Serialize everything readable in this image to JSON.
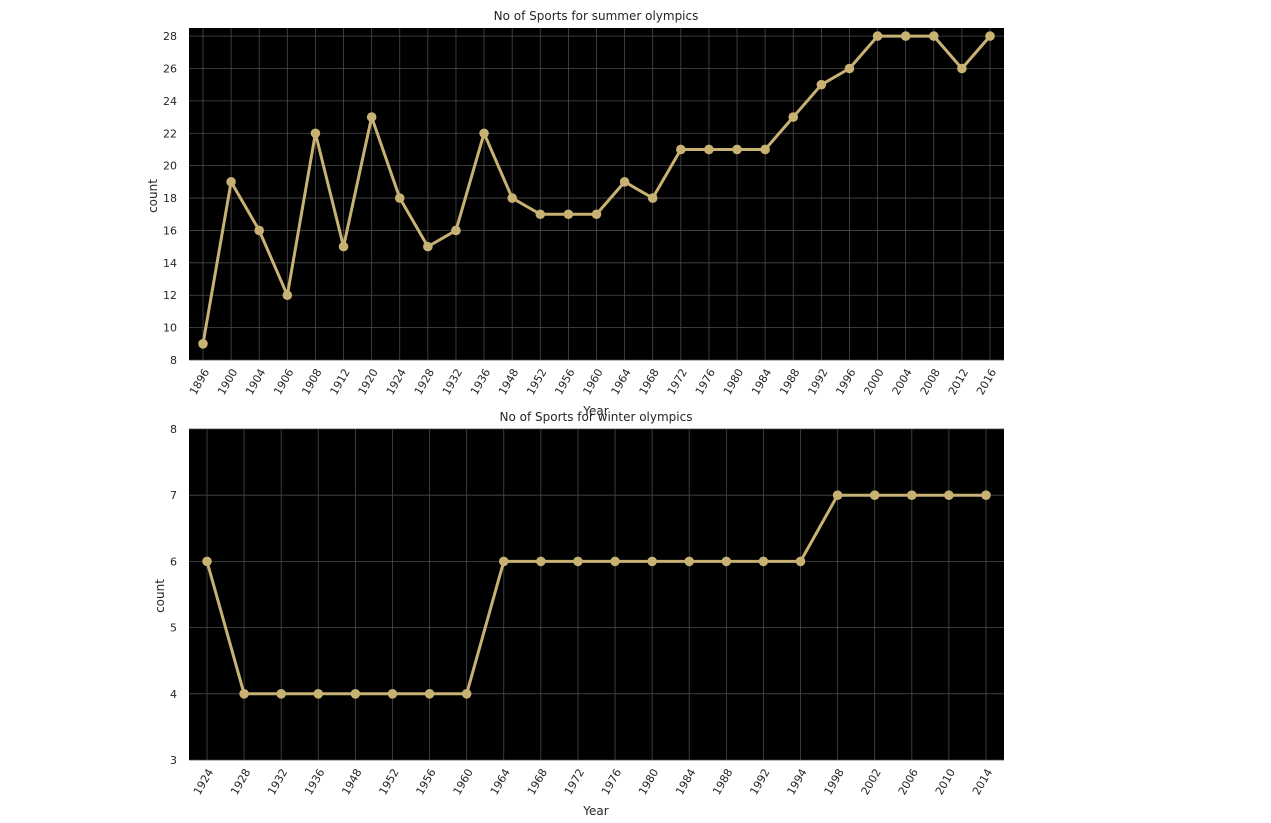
{
  "chart_data": [
    {
      "type": "line",
      "title": "No of Sports for summer olympics",
      "xlabel": "Year",
      "ylabel": "count",
      "ylim": [
        8,
        28.5
      ],
      "yticks": [
        8,
        10,
        12,
        14,
        16,
        18,
        20,
        22,
        24,
        26,
        28
      ],
      "grid": true,
      "colors": {
        "line": "#c8b273",
        "background": "#000000",
        "grid": "#4a4a4a"
      },
      "x": [
        "1896",
        "1900",
        "1904",
        "1906",
        "1908",
        "1912",
        "1920",
        "1924",
        "1928",
        "1932",
        "1936",
        "1948",
        "1952",
        "1956",
        "1960",
        "1964",
        "1968",
        "1972",
        "1976",
        "1980",
        "1984",
        "1988",
        "1992",
        "1996",
        "2000",
        "2004",
        "2008",
        "2012",
        "2016"
      ],
      "values": [
        9,
        19,
        16,
        12,
        22,
        15,
        23,
        18,
        15,
        16,
        22,
        18,
        17,
        17,
        17,
        19,
        18,
        21,
        21,
        21,
        21,
        23,
        25,
        26,
        28,
        28,
        28,
        26,
        28
      ]
    },
    {
      "type": "line",
      "title": "No of Sports for winter olympics",
      "xlabel": "Year",
      "ylabel": "count",
      "ylim": [
        3,
        8
      ],
      "yticks": [
        3,
        4,
        5,
        6,
        7,
        8
      ],
      "grid": true,
      "colors": {
        "line": "#c8b273",
        "background": "#000000",
        "grid": "#4a4a4a"
      },
      "x": [
        "1924",
        "1928",
        "1932",
        "1936",
        "1948",
        "1952",
        "1956",
        "1960",
        "1964",
        "1968",
        "1972",
        "1976",
        "1980",
        "1984",
        "1988",
        "1992",
        "1994",
        "1998",
        "2002",
        "2006",
        "2010",
        "2014"
      ],
      "values": [
        6,
        4,
        4,
        4,
        4,
        4,
        4,
        4,
        6,
        6,
        6,
        6,
        6,
        6,
        6,
        6,
        6,
        7,
        7,
        7,
        7,
        7
      ]
    }
  ]
}
